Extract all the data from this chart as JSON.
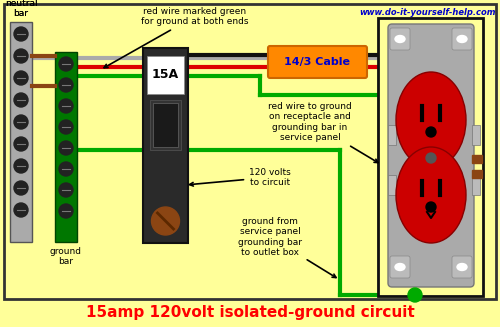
{
  "bg_color": "#FFFF99",
  "border_color": "#333333",
  "title": "15amp 120volt isolated-ground circuit",
  "title_color": "#FF0000",
  "title_fontsize": 11,
  "website": "www.do-it-yourself-help.com",
  "website_color": "#0000CC",
  "cable_label": "14/3 Cable",
  "cable_bg": "#FF8800",
  "cable_text_color": "#0000CC",
  "neutral_bar_color": "#AAAAAA",
  "ground_bar_color": "#007700",
  "screw_color": "#222222",
  "breaker_color": "#2a2a2a",
  "breaker_label": "15A",
  "wire_black": "#111111",
  "wire_red": "#DD0000",
  "wire_green": "#00AA00",
  "wire_gray": "#AAAAAA",
  "outlet_body": "#CC0000",
  "outlet_plate": "#AAAAAA",
  "outlet_slot": "#111111",
  "brown": "#8B4513"
}
